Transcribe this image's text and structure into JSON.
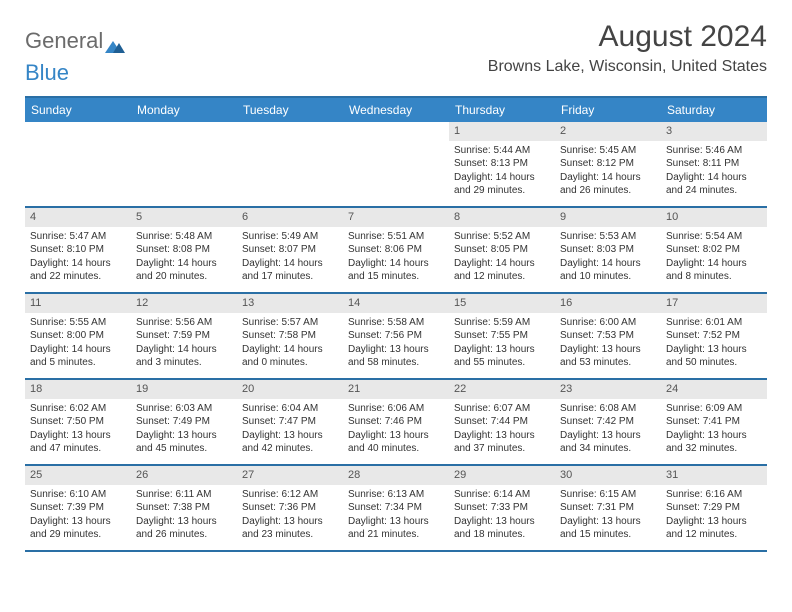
{
  "logo": {
    "text_general": "General",
    "text_blue": "Blue"
  },
  "title": "August 2024",
  "location": "Browns Lake, Wisconsin, United States",
  "colors": {
    "header_bg": "#3585c6",
    "header_text": "#ffffff",
    "border": "#2a6fa5",
    "daynum_bg": "#e8e8e8",
    "text": "#333333",
    "logo_gray": "#6b6b6b",
    "logo_blue": "#3585c6"
  },
  "weekdays": [
    "Sunday",
    "Monday",
    "Tuesday",
    "Wednesday",
    "Thursday",
    "Friday",
    "Saturday"
  ],
  "weeks": [
    [
      {
        "empty": true
      },
      {
        "empty": true
      },
      {
        "empty": true
      },
      {
        "empty": true
      },
      {
        "day": "1",
        "sunrise": "Sunrise: 5:44 AM",
        "sunset": "Sunset: 8:13 PM",
        "daylight1": "Daylight: 14 hours",
        "daylight2": "and 29 minutes."
      },
      {
        "day": "2",
        "sunrise": "Sunrise: 5:45 AM",
        "sunset": "Sunset: 8:12 PM",
        "daylight1": "Daylight: 14 hours",
        "daylight2": "and 26 minutes."
      },
      {
        "day": "3",
        "sunrise": "Sunrise: 5:46 AM",
        "sunset": "Sunset: 8:11 PM",
        "daylight1": "Daylight: 14 hours",
        "daylight2": "and 24 minutes."
      }
    ],
    [
      {
        "day": "4",
        "sunrise": "Sunrise: 5:47 AM",
        "sunset": "Sunset: 8:10 PM",
        "daylight1": "Daylight: 14 hours",
        "daylight2": "and 22 minutes."
      },
      {
        "day": "5",
        "sunrise": "Sunrise: 5:48 AM",
        "sunset": "Sunset: 8:08 PM",
        "daylight1": "Daylight: 14 hours",
        "daylight2": "and 20 minutes."
      },
      {
        "day": "6",
        "sunrise": "Sunrise: 5:49 AM",
        "sunset": "Sunset: 8:07 PM",
        "daylight1": "Daylight: 14 hours",
        "daylight2": "and 17 minutes."
      },
      {
        "day": "7",
        "sunrise": "Sunrise: 5:51 AM",
        "sunset": "Sunset: 8:06 PM",
        "daylight1": "Daylight: 14 hours",
        "daylight2": "and 15 minutes."
      },
      {
        "day": "8",
        "sunrise": "Sunrise: 5:52 AM",
        "sunset": "Sunset: 8:05 PM",
        "daylight1": "Daylight: 14 hours",
        "daylight2": "and 12 minutes."
      },
      {
        "day": "9",
        "sunrise": "Sunrise: 5:53 AM",
        "sunset": "Sunset: 8:03 PM",
        "daylight1": "Daylight: 14 hours",
        "daylight2": "and 10 minutes."
      },
      {
        "day": "10",
        "sunrise": "Sunrise: 5:54 AM",
        "sunset": "Sunset: 8:02 PM",
        "daylight1": "Daylight: 14 hours",
        "daylight2": "and 8 minutes."
      }
    ],
    [
      {
        "day": "11",
        "sunrise": "Sunrise: 5:55 AM",
        "sunset": "Sunset: 8:00 PM",
        "daylight1": "Daylight: 14 hours",
        "daylight2": "and 5 minutes."
      },
      {
        "day": "12",
        "sunrise": "Sunrise: 5:56 AM",
        "sunset": "Sunset: 7:59 PM",
        "daylight1": "Daylight: 14 hours",
        "daylight2": "and 3 minutes."
      },
      {
        "day": "13",
        "sunrise": "Sunrise: 5:57 AM",
        "sunset": "Sunset: 7:58 PM",
        "daylight1": "Daylight: 14 hours",
        "daylight2": "and 0 minutes."
      },
      {
        "day": "14",
        "sunrise": "Sunrise: 5:58 AM",
        "sunset": "Sunset: 7:56 PM",
        "daylight1": "Daylight: 13 hours",
        "daylight2": "and 58 minutes."
      },
      {
        "day": "15",
        "sunrise": "Sunrise: 5:59 AM",
        "sunset": "Sunset: 7:55 PM",
        "daylight1": "Daylight: 13 hours",
        "daylight2": "and 55 minutes."
      },
      {
        "day": "16",
        "sunrise": "Sunrise: 6:00 AM",
        "sunset": "Sunset: 7:53 PM",
        "daylight1": "Daylight: 13 hours",
        "daylight2": "and 53 minutes."
      },
      {
        "day": "17",
        "sunrise": "Sunrise: 6:01 AM",
        "sunset": "Sunset: 7:52 PM",
        "daylight1": "Daylight: 13 hours",
        "daylight2": "and 50 minutes."
      }
    ],
    [
      {
        "day": "18",
        "sunrise": "Sunrise: 6:02 AM",
        "sunset": "Sunset: 7:50 PM",
        "daylight1": "Daylight: 13 hours",
        "daylight2": "and 47 minutes."
      },
      {
        "day": "19",
        "sunrise": "Sunrise: 6:03 AM",
        "sunset": "Sunset: 7:49 PM",
        "daylight1": "Daylight: 13 hours",
        "daylight2": "and 45 minutes."
      },
      {
        "day": "20",
        "sunrise": "Sunrise: 6:04 AM",
        "sunset": "Sunset: 7:47 PM",
        "daylight1": "Daylight: 13 hours",
        "daylight2": "and 42 minutes."
      },
      {
        "day": "21",
        "sunrise": "Sunrise: 6:06 AM",
        "sunset": "Sunset: 7:46 PM",
        "daylight1": "Daylight: 13 hours",
        "daylight2": "and 40 minutes."
      },
      {
        "day": "22",
        "sunrise": "Sunrise: 6:07 AM",
        "sunset": "Sunset: 7:44 PM",
        "daylight1": "Daylight: 13 hours",
        "daylight2": "and 37 minutes."
      },
      {
        "day": "23",
        "sunrise": "Sunrise: 6:08 AM",
        "sunset": "Sunset: 7:42 PM",
        "daylight1": "Daylight: 13 hours",
        "daylight2": "and 34 minutes."
      },
      {
        "day": "24",
        "sunrise": "Sunrise: 6:09 AM",
        "sunset": "Sunset: 7:41 PM",
        "daylight1": "Daylight: 13 hours",
        "daylight2": "and 32 minutes."
      }
    ],
    [
      {
        "day": "25",
        "sunrise": "Sunrise: 6:10 AM",
        "sunset": "Sunset: 7:39 PM",
        "daylight1": "Daylight: 13 hours",
        "daylight2": "and 29 minutes."
      },
      {
        "day": "26",
        "sunrise": "Sunrise: 6:11 AM",
        "sunset": "Sunset: 7:38 PM",
        "daylight1": "Daylight: 13 hours",
        "daylight2": "and 26 minutes."
      },
      {
        "day": "27",
        "sunrise": "Sunrise: 6:12 AM",
        "sunset": "Sunset: 7:36 PM",
        "daylight1": "Daylight: 13 hours",
        "daylight2": "and 23 minutes."
      },
      {
        "day": "28",
        "sunrise": "Sunrise: 6:13 AM",
        "sunset": "Sunset: 7:34 PM",
        "daylight1": "Daylight: 13 hours",
        "daylight2": "and 21 minutes."
      },
      {
        "day": "29",
        "sunrise": "Sunrise: 6:14 AM",
        "sunset": "Sunset: 7:33 PM",
        "daylight1": "Daylight: 13 hours",
        "daylight2": "and 18 minutes."
      },
      {
        "day": "30",
        "sunrise": "Sunrise: 6:15 AM",
        "sunset": "Sunset: 7:31 PM",
        "daylight1": "Daylight: 13 hours",
        "daylight2": "and 15 minutes."
      },
      {
        "day": "31",
        "sunrise": "Sunrise: 6:16 AM",
        "sunset": "Sunset: 7:29 PM",
        "daylight1": "Daylight: 13 hours",
        "daylight2": "and 12 minutes."
      }
    ]
  ]
}
